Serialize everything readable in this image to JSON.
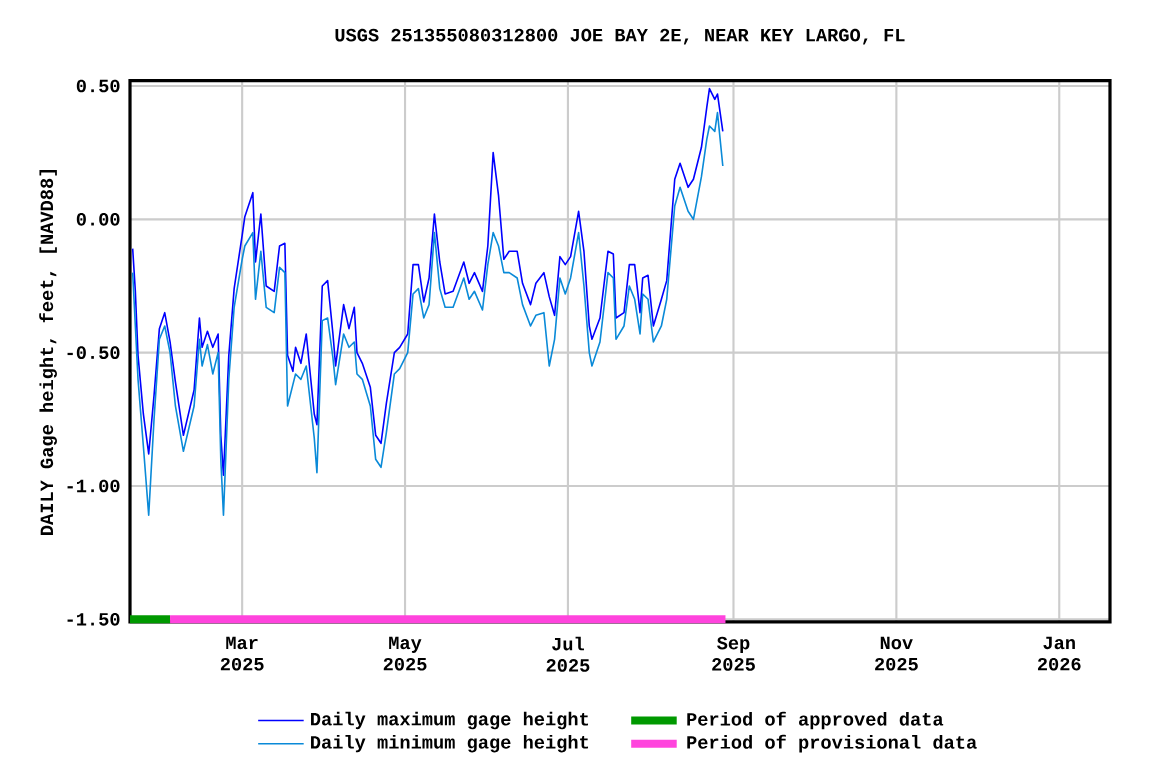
{
  "chart_data": {
    "type": "line",
    "title": "USGS 251355080312800 JOE BAY 2E, NEAR KEY LARGO, FL",
    "ylabel": "DAILY Gage height, feet, [NAVD88]",
    "x": [
      "2025-01-19",
      "2025-01-20",
      "2025-01-21",
      "2025-01-23",
      "2025-01-25",
      "2025-01-27",
      "2025-01-29",
      "2025-01-31",
      "2025-02-02",
      "2025-02-04",
      "2025-02-07",
      "2025-02-11",
      "2025-02-13",
      "2025-02-14",
      "2025-02-16",
      "2025-02-18",
      "2025-02-20",
      "2025-02-21",
      "2025-02-22",
      "2025-02-24",
      "2025-02-26",
      "2025-03-01",
      "2025-03-02",
      "2025-03-05",
      "2025-03-06",
      "2025-03-08",
      "2025-03-10",
      "2025-03-13",
      "2025-03-15",
      "2025-03-17",
      "2025-03-18",
      "2025-03-20",
      "2025-03-21",
      "2025-03-23",
      "2025-03-25",
      "2025-03-28",
      "2025-03-29",
      "2025-03-31",
      "2025-04-02",
      "2025-04-04",
      "2025-04-05",
      "2025-04-08",
      "2025-04-10",
      "2025-04-12",
      "2025-04-13",
      "2025-04-15",
      "2025-04-18",
      "2025-04-20",
      "2025-04-22",
      "2025-04-24",
      "2025-04-27",
      "2025-04-29",
      "2025-05-02",
      "2025-05-04",
      "2025-05-06",
      "2025-05-08",
      "2025-05-10",
      "2025-05-12",
      "2025-05-14",
      "2025-05-16",
      "2025-05-19",
      "2025-05-23",
      "2025-05-25",
      "2025-05-27",
      "2025-05-30",
      "2025-06-01",
      "2025-06-03",
      "2025-06-05",
      "2025-06-07",
      "2025-06-09",
      "2025-06-12",
      "2025-06-14",
      "2025-06-17",
      "2025-06-19",
      "2025-06-22",
      "2025-06-24",
      "2025-06-26",
      "2025-06-28",
      "2025-06-30",
      "2025-07-02",
      "2025-07-05",
      "2025-07-07",
      "2025-07-09",
      "2025-07-10",
      "2025-07-13",
      "2025-07-16",
      "2025-07-18",
      "2025-07-19",
      "2025-07-22",
      "2025-07-24",
      "2025-07-26",
      "2025-07-28",
      "2025-07-29",
      "2025-07-31",
      "2025-08-02",
      "2025-08-05",
      "2025-08-07",
      "2025-08-10",
      "2025-08-12",
      "2025-08-15",
      "2025-08-17",
      "2025-08-20",
      "2025-08-22",
      "2025-08-23",
      "2025-08-25",
      "2025-08-26",
      "2025-08-28"
    ],
    "series": [
      {
        "name": "Daily maximum gage height",
        "color": "#0000ff",
        "values": [
          -0.11,
          -0.27,
          -0.51,
          -0.73,
          -0.88,
          -0.66,
          -0.41,
          -0.35,
          -0.46,
          -0.61,
          -0.81,
          -0.64,
          -0.37,
          -0.48,
          -0.42,
          -0.48,
          -0.43,
          -0.81,
          -0.96,
          -0.51,
          -0.26,
          -0.06,
          0.01,
          0.1,
          -0.16,
          0.02,
          -0.25,
          -0.27,
          -0.1,
          -0.09,
          -0.51,
          -0.57,
          -0.48,
          -0.54,
          -0.43,
          -0.73,
          -0.77,
          -0.25,
          -0.23,
          -0.43,
          -0.55,
          -0.32,
          -0.41,
          -0.33,
          -0.5,
          -0.54,
          -0.63,
          -0.81,
          -0.84,
          -0.69,
          -0.5,
          -0.48,
          -0.43,
          -0.17,
          -0.17,
          -0.31,
          -0.22,
          0.02,
          -0.16,
          -0.28,
          -0.27,
          -0.16,
          -0.24,
          -0.2,
          -0.27,
          -0.1,
          0.25,
          0.09,
          -0.15,
          -0.12,
          -0.12,
          -0.24,
          -0.32,
          -0.24,
          -0.2,
          -0.29,
          -0.36,
          -0.14,
          -0.17,
          -0.14,
          0.03,
          -0.12,
          -0.4,
          -0.45,
          -0.37,
          -0.12,
          -0.13,
          -0.37,
          -0.35,
          -0.17,
          -0.17,
          -0.35,
          -0.22,
          -0.21,
          -0.4,
          -0.3,
          -0.23,
          0.15,
          0.21,
          0.12,
          0.15,
          0.27,
          0.42,
          0.49,
          0.45,
          0.47,
          0.33
        ]
      },
      {
        "name": "Period of approved data",
        "color": "#009900",
        "x": [
          "2025-01-18",
          "2025-02-02"
        ],
        "values": [
          -1.5,
          -1.5
        ]
      },
      {
        "name": "Daily minimum gage height",
        "color": "#0a8ad8",
        "values": [
          -0.2,
          -0.4,
          -0.6,
          -0.85,
          -1.11,
          -0.75,
          -0.45,
          -0.4,
          -0.5,
          -0.7,
          -0.87,
          -0.7,
          -0.45,
          -0.55,
          -0.47,
          -0.58,
          -0.5,
          -0.9,
          -1.11,
          -0.6,
          -0.33,
          -0.15,
          -0.1,
          -0.05,
          -0.3,
          -0.12,
          -0.33,
          -0.35,
          -0.18,
          -0.2,
          -0.7,
          -0.62,
          -0.58,
          -0.6,
          -0.55,
          -0.82,
          -0.95,
          -0.38,
          -0.37,
          -0.52,
          -0.62,
          -0.43,
          -0.48,
          -0.46,
          -0.58,
          -0.6,
          -0.7,
          -0.9,
          -0.93,
          -0.8,
          -0.58,
          -0.56,
          -0.5,
          -0.28,
          -0.26,
          -0.37,
          -0.32,
          -0.05,
          -0.26,
          -0.33,
          -0.33,
          -0.22,
          -0.3,
          -0.27,
          -0.34,
          -0.17,
          -0.05,
          -0.1,
          -0.2,
          -0.2,
          -0.22,
          -0.32,
          -0.4,
          -0.36,
          -0.35,
          -0.55,
          -0.45,
          -0.22,
          -0.28,
          -0.22,
          -0.05,
          -0.25,
          -0.5,
          -0.55,
          -0.46,
          -0.2,
          -0.22,
          -0.45,
          -0.4,
          -0.25,
          -0.3,
          -0.43,
          -0.28,
          -0.3,
          -0.46,
          -0.4,
          -0.3,
          0.05,
          0.12,
          0.03,
          0.0,
          0.16,
          0.3,
          0.35,
          0.33,
          0.4,
          0.2
        ]
      },
      {
        "name": "Period of provisional data",
        "color": "#ff44dd",
        "x": [
          "2025-02-02",
          "2025-08-29"
        ],
        "values": [
          -1.5,
          -1.5
        ]
      }
    ],
    "xlim": [
      "2025-01-18",
      "2026-01-20"
    ],
    "xticks": [
      {
        "value": "2025-03-01",
        "label": "Mar 2025"
      },
      {
        "value": "2025-05-01",
        "label": "May 2025"
      },
      {
        "value": "2025-07-01",
        "label": "Jul 2025"
      },
      {
        "value": "2025-09-01",
        "label": "Sep 2025"
      },
      {
        "value": "2025-11-01",
        "label": "Nov 2025"
      },
      {
        "value": "2026-01-01",
        "label": "Jan 2026"
      }
    ],
    "ylim": [
      -1.51,
      0.52
    ],
    "yticks": [
      {
        "value": -1.5,
        "label": "-1.50"
      },
      {
        "value": -1.0,
        "label": "-1.00"
      },
      {
        "value": -0.5,
        "label": "-0.50"
      },
      {
        "value": 0.0,
        "label": "0.00"
      },
      {
        "value": 0.5,
        "label": "0.50"
      }
    ],
    "grid": true,
    "legend": "bottom",
    "line_style": "solid"
  }
}
